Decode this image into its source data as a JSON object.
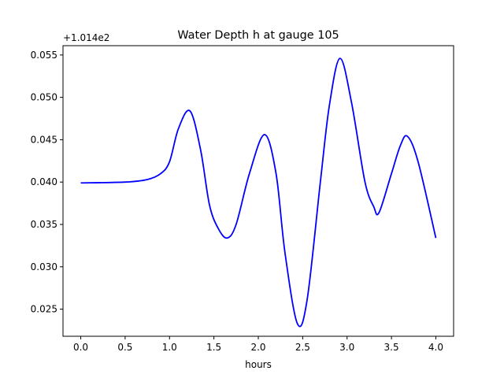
{
  "chart_data": {
    "type": "line",
    "title": "Water Depth h at gauge 105",
    "xlabel": "hours",
    "ylabel": "",
    "y_offset_text": "+1.014e2",
    "xlim": [
      -0.2,
      4.2
    ],
    "ylim": [
      0.0218,
      0.0561
    ],
    "x_ticks": [
      "0.0",
      "0.5",
      "1.0",
      "1.5",
      "2.0",
      "2.5",
      "3.0",
      "3.5",
      "4.0"
    ],
    "y_ticks": [
      "0.025",
      "0.030",
      "0.035",
      "0.040",
      "0.045",
      "0.050",
      "0.055"
    ],
    "grid": false,
    "series": [
      {
        "name": "h",
        "color": "#0000ff",
        "x": [
          0,
          0.5,
          0.75,
          0.9,
          1.0,
          1.1,
          1.23,
          1.35,
          1.45,
          1.55,
          1.65,
          1.75,
          1.9,
          2.07,
          2.2,
          2.3,
          2.44,
          2.55,
          2.7,
          2.8,
          2.92,
          3.05,
          3.2,
          3.3,
          3.36,
          3.5,
          3.6,
          3.68,
          3.8,
          4.0
        ],
        "y": [
          0.0399,
          0.04,
          0.0403,
          0.041,
          0.0424,
          0.0463,
          0.0484,
          0.0438,
          0.0373,
          0.0345,
          0.0334,
          0.035,
          0.041,
          0.0456,
          0.041,
          0.0317,
          0.0233,
          0.0261,
          0.0401,
          0.049,
          0.0546,
          0.0494,
          0.0401,
          0.0371,
          0.0364,
          0.041,
          0.0443,
          0.0454,
          0.0424,
          0.0334
        ]
      }
    ]
  }
}
